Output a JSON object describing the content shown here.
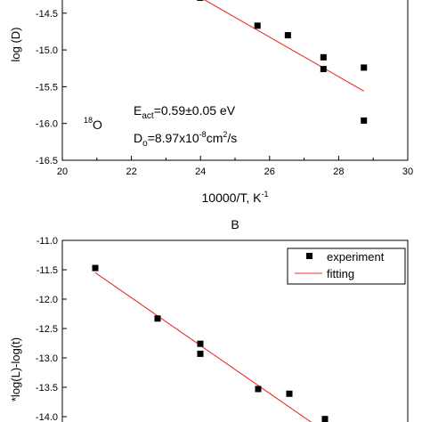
{
  "chart_data": [
    {
      "type": "scatter",
      "title": "",
      "xlabel": "10000/T, K",
      "xlabel_sup": "-1",
      "ylabel": "log (D)",
      "xlim": [
        20,
        30
      ],
      "ylim": [
        -16.5,
        -14.2
      ],
      "xticks": [
        "20",
        "22",
        "24",
        "26",
        "28",
        "30"
      ],
      "yticks": [
        "-14.5",
        "-15.0",
        "-15.5",
        "-16.0",
        "-16.5"
      ],
      "grid": false,
      "series": [
        {
          "type": "scatter",
          "marker": "square",
          "x": [
            23.99,
            25.65,
            26.53,
            27.56,
            27.56,
            28.73,
            28.73
          ],
          "y": [
            -14.29,
            -14.67,
            -14.8,
            -15.1,
            -15.26,
            -15.24,
            -15.96
          ]
        },
        {
          "type": "line",
          "color": "#e8302c",
          "x": [
            23.6,
            28.73
          ],
          "y": [
            -14.18,
            -15.56
          ]
        }
      ],
      "annotations": {
        "isotope_sup": "18",
        "isotope": "O",
        "eact_E": "E",
        "eact_sub": "act",
        "eact_value": "=0.59±0.05 eV",
        "d0_D": "D",
        "d0_sub": "o",
        "d0_mid": "=8.97x10",
        "d0_exp": "-8",
        "d0_unit": "cm",
        "d0_unit_sup": "2",
        "d0_tail": "/s"
      }
    },
    {
      "type": "scatter",
      "panel_label": "B",
      "ylabel": "*log(L)-log(t)",
      "ylim": [
        -14.0,
        -11.0
      ],
      "yticks": [
        "-11.0",
        "-11.5",
        "-12.0",
        "-12.5",
        "-13.0",
        "-13.5",
        "-14.0"
      ],
      "grid": false,
      "legend": {
        "placement": "top-right"
      },
      "series": [
        {
          "name": "experiment",
          "type": "scatter",
          "marker": "square",
          "y": [
            -11.47,
            -12.33,
            -12.76,
            -12.93,
            -13.53,
            -13.61,
            -14.04
          ]
        },
        {
          "name": "fitting",
          "type": "line",
          "color": "#e8302c",
          "y": [
            -11.55,
            -14.12
          ]
        }
      ]
    }
  ]
}
